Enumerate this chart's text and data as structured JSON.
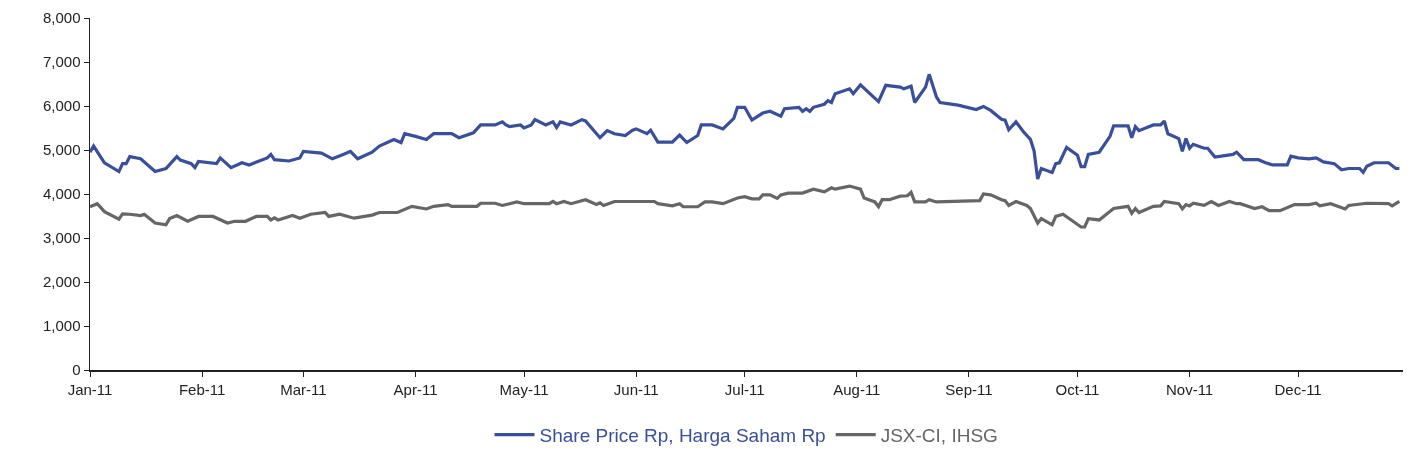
{
  "chart_data": {
    "type": "line",
    "xlim": [
      "2011-01-01",
      "2011-12-30"
    ],
    "xticks": [
      {
        "value": "2011-01-01",
        "label": "Jan-11"
      },
      {
        "value": "2011-02-01",
        "label": "Feb-11"
      },
      {
        "value": "2011-03-01",
        "label": "Mar-11"
      },
      {
        "value": "2011-04-01",
        "label": "Apr-11"
      },
      {
        "value": "2011-05-01",
        "label": "May-11"
      },
      {
        "value": "2011-06-01",
        "label": "Jun-11"
      },
      {
        "value": "2011-07-01",
        "label": "Jul-11"
      },
      {
        "value": "2011-08-01",
        "label": "Aug-11"
      },
      {
        "value": "2011-09-01",
        "label": "Sep-11"
      },
      {
        "value": "2011-10-01",
        "label": "Oct-11"
      },
      {
        "value": "2011-11-01",
        "label": "Nov-11"
      },
      {
        "value": "2011-12-01",
        "label": "Dec-11"
      }
    ],
    "ylim": [
      0,
      8000
    ],
    "yticks": [
      0,
      {
        "value": 1000,
        "label": "1,000"
      },
      {
        "value": 2000,
        "label": "2,000"
      },
      {
        "value": 3000,
        "label": "3,000"
      },
      {
        "value": 4000,
        "label": "4,000"
      },
      {
        "value": 5000,
        "label": "5,000"
      },
      {
        "value": 6000,
        "label": "6,000"
      },
      {
        "value": 7000,
        "label": "7,000"
      },
      {
        "value": 8000,
        "label": "8,000"
      }
    ],
    "grid": false,
    "legend": "bottom",
    "marker": "none",
    "line_style": "solid",
    "series": [
      {
        "name": "Share Price Rp, Harga Saham Rp",
        "color": "#3a4f9b",
        "x": [
          "2011-01-01",
          "2011-01-02",
          "2011-01-05",
          "2011-01-09",
          "2011-01-10",
          "2011-01-11",
          "2011-01-12",
          "2011-01-15",
          "2011-01-19",
          "2011-01-22",
          "2011-01-25",
          "2011-01-26",
          "2011-01-29",
          "2011-01-30",
          "2011-01-31",
          "2011-02-05",
          "2011-02-06",
          "2011-02-09",
          "2011-02-12",
          "2011-02-14",
          "2011-02-19",
          "2011-02-20",
          "2011-02-21",
          "2011-02-25",
          "2011-02-28",
          "2011-03-01",
          "2011-03-06",
          "2011-03-09",
          "2011-03-12",
          "2011-03-14",
          "2011-03-16",
          "2011-03-20",
          "2011-03-22",
          "2011-03-26",
          "2011-03-28",
          "2011-03-29",
          "2011-04-01",
          "2011-04-04",
          "2011-04-06",
          "2011-04-11",
          "2011-04-13",
          "2011-04-17",
          "2011-04-19",
          "2011-04-23",
          "2011-04-25",
          "2011-04-26",
          "2011-04-27",
          "2011-04-30",
          "2011-05-01",
          "2011-05-03",
          "2011-05-04",
          "2011-05-07",
          "2011-05-09",
          "2011-05-10",
          "2011-05-11",
          "2011-05-14",
          "2011-05-17",
          "2011-05-18",
          "2011-05-22",
          "2011-05-24",
          "2011-05-26",
          "2011-05-29",
          "2011-05-31",
          "2011-06-01",
          "2011-06-04",
          "2011-06-05",
          "2011-06-07",
          "2011-06-11",
          "2011-06-13",
          "2011-06-15",
          "2011-06-18",
          "2011-06-19",
          "2011-06-22",
          "2011-06-25",
          "2011-06-28",
          "2011-06-29",
          "2011-07-01",
          "2011-07-03",
          "2011-07-06",
          "2011-07-08",
          "2011-07-11",
          "2011-07-12",
          "2011-07-16",
          "2011-07-17",
          "2011-07-18",
          "2011-07-19",
          "2011-07-20",
          "2011-07-23",
          "2011-07-24",
          "2011-07-25",
          "2011-07-26",
          "2011-07-30",
          "2011-07-31",
          "2011-08-02",
          "2011-08-07",
          "2011-08-09",
          "2011-08-13",
          "2011-08-14",
          "2011-08-16",
          "2011-08-17",
          "2011-08-20",
          "2011-08-21",
          "2011-08-23",
          "2011-08-24",
          "2011-08-29",
          "2011-09-03",
          "2011-09-05",
          "2011-09-07",
          "2011-09-10",
          "2011-09-11",
          "2011-09-12",
          "2011-09-14",
          "2011-09-16",
          "2011-09-18",
          "2011-09-19",
          "2011-09-20",
          "2011-09-21",
          "2011-09-24",
          "2011-09-25",
          "2011-09-26",
          "2011-09-28",
          "2011-10-01",
          "2011-10-02",
          "2011-10-03",
          "2011-10-04",
          "2011-10-07",
          "2011-10-10",
          "2011-10-11",
          "2011-10-15",
          "2011-10-16",
          "2011-10-17",
          "2011-10-18",
          "2011-10-22",
          "2011-10-24",
          "2011-10-25",
          "2011-10-26",
          "2011-10-29",
          "2011-10-30",
          "2011-10-31",
          "2011-11-01",
          "2011-11-02",
          "2011-11-05",
          "2011-11-06",
          "2011-11-08",
          "2011-11-13",
          "2011-11-14",
          "2011-11-16",
          "2011-11-20",
          "2011-11-22",
          "2011-11-24",
          "2011-11-28",
          "2011-11-29",
          "2011-12-01",
          "2011-12-04",
          "2011-12-06",
          "2011-12-08",
          "2011-12-11",
          "2011-12-13",
          "2011-12-15",
          "2011-12-18",
          "2011-12-19",
          "2011-12-20",
          "2011-12-22",
          "2011-12-26",
          "2011-12-28",
          "2011-12-29"
        ],
        "values": [
          4950,
          5090,
          4710,
          4510,
          4690,
          4690,
          4850,
          4800,
          4510,
          4580,
          4850,
          4770,
          4690,
          4600,
          4740,
          4690,
          4820,
          4600,
          4710,
          4660,
          4820,
          4900,
          4780,
          4750,
          4820,
          4970,
          4930,
          4800,
          4900,
          4970,
          4800,
          4950,
          5090,
          5240,
          5170,
          5370,
          5310,
          5240,
          5370,
          5370,
          5280,
          5390,
          5570,
          5570,
          5640,
          5570,
          5530,
          5570,
          5500,
          5570,
          5690,
          5570,
          5640,
          5510,
          5640,
          5570,
          5690,
          5660,
          5280,
          5440,
          5370,
          5330,
          5450,
          5480,
          5370,
          5450,
          5180,
          5180,
          5340,
          5170,
          5330,
          5570,
          5570,
          5480,
          5720,
          5970,
          5970,
          5680,
          5840,
          5880,
          5770,
          5940,
          5970,
          5880,
          5940,
          5880,
          5970,
          6040,
          6120,
          6080,
          6280,
          6390,
          6280,
          6480,
          6100,
          6470,
          6430,
          6390,
          6450,
          6080,
          6430,
          6720,
          6210,
          6080,
          6020,
          5920,
          5990,
          5900,
          5700,
          5680,
          5460,
          5640,
          5420,
          5240,
          4980,
          4340,
          4580,
          4490,
          4690,
          4710,
          5060,
          4880,
          4620,
          4620,
          4900,
          4950,
          5310,
          5550,
          5550,
          5280,
          5530,
          5440,
          5570,
          5570,
          5660,
          5370,
          5260,
          4970,
          5260,
          5040,
          5130,
          5040,
          5040,
          4840,
          4900,
          4950,
          4780,
          4780,
          4710,
          4660,
          4660,
          4860,
          4820,
          4800,
          4820,
          4730,
          4690,
          4550,
          4580,
          4580,
          4490,
          4630,
          4710,
          4710,
          4580,
          4580
        ]
      },
      {
        "name": "JSX-CI, IHSG",
        "color": "#666666",
        "x": [
          "2011-01-01",
          "2011-01-03",
          "2011-01-05",
          "2011-01-09",
          "2011-01-10",
          "2011-01-12",
          "2011-01-15",
          "2011-01-16",
          "2011-01-19",
          "2011-01-22",
          "2011-01-23",
          "2011-01-25",
          "2011-01-28",
          "2011-01-31",
          "2011-02-04",
          "2011-02-08",
          "2011-02-10",
          "2011-02-13",
          "2011-02-16",
          "2011-02-19",
          "2011-02-20",
          "2011-02-21",
          "2011-02-22",
          "2011-02-26",
          "2011-02-28",
          "2011-03-03",
          "2011-03-07",
          "2011-03-08",
          "2011-03-11",
          "2011-03-15",
          "2011-03-20",
          "2011-03-22",
          "2011-03-27",
          "2011-03-31",
          "2011-04-04",
          "2011-04-06",
          "2011-04-10",
          "2011-04-11",
          "2011-04-18",
          "2011-04-19",
          "2011-04-23",
          "2011-04-25",
          "2011-04-29",
          "2011-05-01",
          "2011-05-08",
          "2011-05-09",
          "2011-05-10",
          "2011-05-12",
          "2011-05-14",
          "2011-05-18",
          "2011-05-21",
          "2011-05-22",
          "2011-05-23",
          "2011-05-26",
          "2011-06-06",
          "2011-06-07",
          "2011-06-11",
          "2011-06-13",
          "2011-06-14",
          "2011-06-18",
          "2011-06-20",
          "2011-06-22",
          "2011-06-25",
          "2011-06-29",
          "2011-07-01",
          "2011-07-03",
          "2011-07-05",
          "2011-07-06",
          "2011-07-08",
          "2011-07-10",
          "2011-07-11",
          "2011-07-13",
          "2011-07-17",
          "2011-07-20",
          "2011-07-23",
          "2011-07-25",
          "2011-07-26",
          "2011-07-30",
          "2011-08-02",
          "2011-08-03",
          "2011-08-06",
          "2011-08-07",
          "2011-08-08",
          "2011-08-10",
          "2011-08-13",
          "2011-08-15",
          "2011-08-16",
          "2011-08-17",
          "2011-08-20",
          "2011-08-21",
          "2011-08-23",
          "2011-09-04",
          "2011-09-05",
          "2011-09-07",
          "2011-09-10",
          "2011-09-11",
          "2011-09-12",
          "2011-09-14",
          "2011-09-17",
          "2011-09-18",
          "2011-09-20",
          "2011-09-21",
          "2011-09-24",
          "2011-09-25",
          "2011-09-27",
          "2011-10-02",
          "2011-10-03",
          "2011-10-04",
          "2011-10-07",
          "2011-10-11",
          "2011-10-15",
          "2011-10-16",
          "2011-10-17",
          "2011-10-18",
          "2011-10-22",
          "2011-10-24",
          "2011-10-25",
          "2011-10-29",
          "2011-10-30",
          "2011-10-31",
          "2011-11-01",
          "2011-11-02",
          "2011-11-05",
          "2011-11-07",
          "2011-11-09",
          "2011-11-12",
          "2011-11-14",
          "2011-11-15",
          "2011-11-19",
          "2011-11-21",
          "2011-11-23",
          "2011-11-26",
          "2011-11-30",
          "2011-12-04",
          "2011-12-06",
          "2011-12-07",
          "2011-12-10",
          "2011-12-14",
          "2011-12-15",
          "2011-12-20",
          "2011-12-26",
          "2011-12-27",
          "2011-12-29"
        ],
        "values": [
          3710,
          3780,
          3600,
          3430,
          3550,
          3540,
          3510,
          3540,
          3340,
          3300,
          3440,
          3510,
          3380,
          3490,
          3490,
          3340,
          3380,
          3380,
          3490,
          3490,
          3410,
          3460,
          3410,
          3510,
          3450,
          3540,
          3580,
          3490,
          3540,
          3450,
          3520,
          3580,
          3580,
          3720,
          3660,
          3720,
          3760,
          3720,
          3720,
          3790,
          3790,
          3740,
          3820,
          3780,
          3780,
          3830,
          3780,
          3830,
          3780,
          3870,
          3760,
          3800,
          3740,
          3830,
          3830,
          3780,
          3730,
          3780,
          3710,
          3710,
          3820,
          3820,
          3780,
          3910,
          3940,
          3890,
          3890,
          3980,
          3980,
          3900,
          3980,
          4020,
          4020,
          4110,
          4050,
          4140,
          4110,
          4180,
          4110,
          3910,
          3820,
          3710,
          3870,
          3870,
          3950,
          3960,
          4040,
          3820,
          3820,
          3870,
          3820,
          3850,
          4000,
          3980,
          3870,
          3850,
          3740,
          3830,
          3740,
          3670,
          3340,
          3440,
          3300,
          3490,
          3540,
          3250,
          3250,
          3440,
          3410,
          3670,
          3720,
          3560,
          3670,
          3580,
          3720,
          3730,
          3830,
          3780,
          3660,
          3760,
          3730,
          3790,
          3740,
          3830,
          3740,
          3830,
          3780,
          3780,
          3670,
          3710,
          3620,
          3620,
          3760,
          3760,
          3790,
          3730,
          3780,
          3660,
          3740,
          3790,
          3780,
          3730,
          3830
        ]
      }
    ]
  }
}
